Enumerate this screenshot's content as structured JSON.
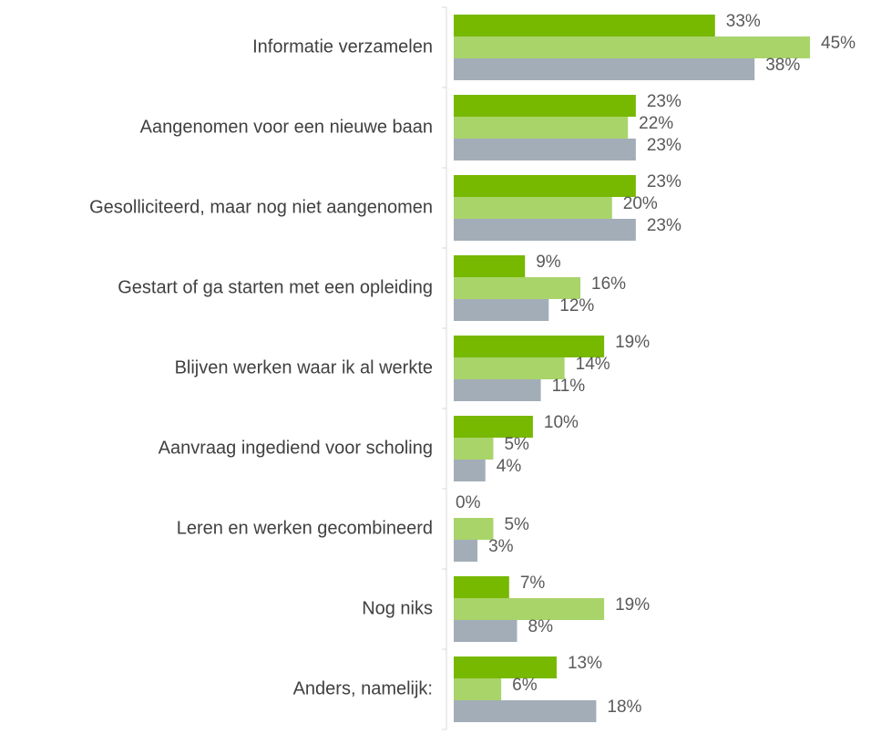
{
  "chart_data": {
    "type": "barh",
    "categories": [
      "Informatie verzamelen",
      "Aangenomen voor een nieuwe baan",
      "Gesolliciteerd, maar nog niet aangenomen",
      "Gestart of ga starten met een opleiding",
      "Blijven werken waar ik al werkte",
      "Aanvraag ingediend voor scholing",
      "Leren en werken gecombineerd",
      "Nog niks",
      "Anders, namelijk:"
    ],
    "series": [
      {
        "color": "#77b800",
        "values": [
          33,
          23,
          23,
          9,
          19,
          10,
          0,
          7,
          13
        ],
        "value_labels": [
          "33%",
          "23%",
          "23%",
          "9%",
          "19%",
          "10%",
          "0%",
          "7%",
          "13%"
        ]
      },
      {
        "color": "#a9d46a",
        "values": [
          45,
          22,
          20,
          16,
          14,
          5,
          5,
          19,
          6
        ],
        "value_labels": [
          "45%",
          "22%",
          "20%",
          "16%",
          "14%",
          "5%",
          "5%",
          "19%",
          "6%"
        ]
      },
      {
        "color": "#a3adb8",
        "values": [
          38,
          23,
          23,
          12,
          11,
          4,
          3,
          8,
          18
        ],
        "value_labels": [
          "38%",
          "23%",
          "23%",
          "12%",
          "11%",
          "4%",
          "3%",
          "8%",
          "18%"
        ]
      }
    ]
  }
}
